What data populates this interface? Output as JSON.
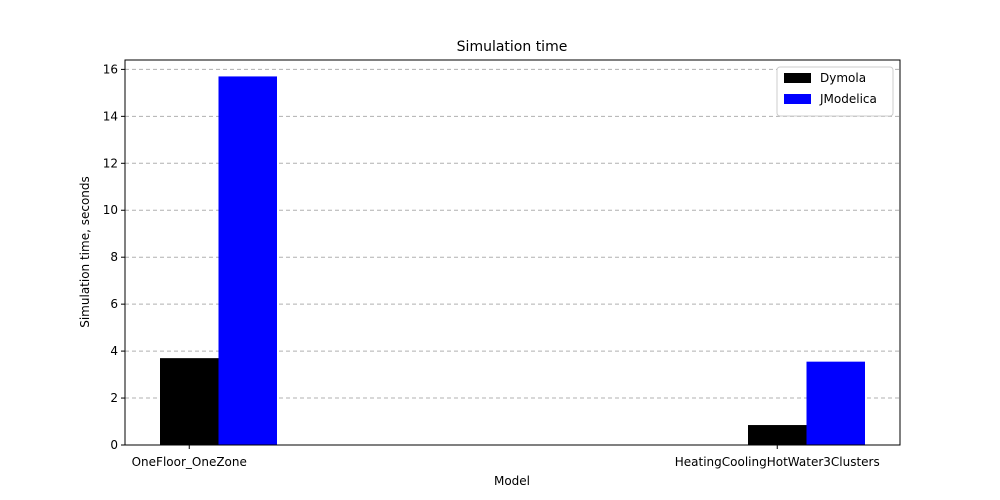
{
  "chart_data": {
    "type": "bar",
    "title": "Simulation time",
    "xlabel": "Model",
    "ylabel": "Simulation time, seconds",
    "categories": [
      "OneFloor_OneZone",
      "HeatingCoolingHotWater3Clusters"
    ],
    "series": [
      {
        "name": "Dymola",
        "values": [
          3.7,
          0.85
        ],
        "color": "#000000"
      },
      {
        "name": "JModelica",
        "values": [
          15.7,
          3.55
        ],
        "color": "#0000ff"
      }
    ],
    "ylim": [
      0,
      16.4
    ],
    "yticks": [
      0,
      2,
      4,
      6,
      8,
      10,
      12,
      14,
      16
    ],
    "grid": "y-dashed",
    "legend_position": "top-right"
  }
}
